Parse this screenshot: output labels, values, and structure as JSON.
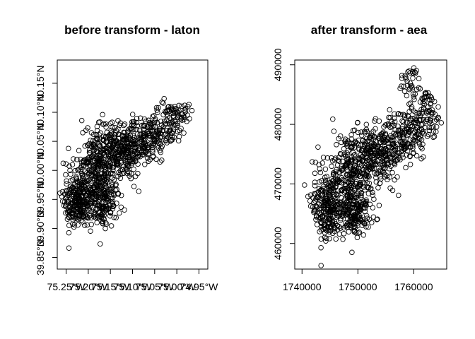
{
  "chart_data": [
    {
      "type": "scatter",
      "title": "before transform - laton",
      "xlabel": "",
      "ylabel": "",
      "marker": "open-circle",
      "color": "#000000",
      "xlim": [
        -75.27,
        -74.93
      ],
      "ylim": [
        39.83,
        40.19
      ],
      "x_ticks": [
        -75.25,
        -75.2,
        -75.15,
        -75.1,
        -75.05,
        -75.0,
        -74.95
      ],
      "x_tick_labels": [
        "75.25°W",
        "75.20°W",
        "75.15°W",
        "75.10°W",
        "75.05°W",
        "75.00°W",
        "74.95°W"
      ],
      "y_ticks": [
        39.85,
        39.9,
        39.95,
        40.0,
        40.05,
        40.1,
        40.15
      ],
      "y_tick_labels": [
        "39.85°N",
        "39.90°N",
        "39.95°N",
        "40.00°N",
        "40.05°N",
        "40.10°N",
        "40.15°N"
      ],
      "clusters": [
        {
          "center": [
            -75.225,
            39.955
          ],
          "spread": [
            0.018,
            0.02
          ],
          "count": 160
        },
        {
          "center": [
            -75.225,
            39.925
          ],
          "spread": [
            0.012,
            0.014
          ],
          "count": 60
        },
        {
          "center": [
            -75.18,
            39.965
          ],
          "spread": [
            0.02,
            0.03
          ],
          "count": 160
        },
        {
          "center": [
            -75.165,
            40.02
          ],
          "spread": [
            0.022,
            0.03
          ],
          "count": 220
        },
        {
          "center": [
            -75.165,
            39.935
          ],
          "spread": [
            0.016,
            0.016
          ],
          "count": 80
        },
        {
          "center": [
            -75.12,
            40.03
          ],
          "spread": [
            0.025,
            0.022
          ],
          "count": 190
        },
        {
          "center": [
            -75.07,
            40.055
          ],
          "spread": [
            0.025,
            0.02
          ],
          "count": 160
        },
        {
          "center": [
            -75.02,
            40.08
          ],
          "spread": [
            0.022,
            0.018
          ],
          "count": 90
        },
        {
          "center": [
            -74.99,
            40.1
          ],
          "spread": [
            0.015,
            0.01
          ],
          "count": 30
        },
        {
          "center": [
            -75.2,
            40.01
          ],
          "spread": [
            0.025,
            0.035
          ],
          "count": 70
        }
      ]
    },
    {
      "type": "scatter",
      "title": "after transform - aea",
      "xlabel": "",
      "ylabel": "",
      "marker": "open-circle",
      "color": "#000000",
      "xlim": [
        1738700,
        1765900
      ],
      "ylim": [
        455700,
        490800
      ],
      "x_ticks": [
        1740000,
        1750000,
        1760000
      ],
      "x_tick_labels": [
        "1740000",
        "1750000",
        "1760000"
      ],
      "y_ticks": [
        460000,
        470000,
        480000,
        490000
      ],
      "y_tick_labels": [
        "460000",
        "470000",
        "480000",
        "490000"
      ],
      "clusters": [
        {
          "center": [
            1744300,
            467200
          ],
          "spread": [
            1500,
            2300
          ],
          "count": 160
        },
        {
          "center": [
            1744800,
            463000
          ],
          "spread": [
            900,
            1600
          ],
          "count": 60
        },
        {
          "center": [
            1748600,
            466500
          ],
          "spread": [
            1700,
            2500
          ],
          "count": 150
        },
        {
          "center": [
            1750200,
            472700
          ],
          "spread": [
            2000,
            3000
          ],
          "count": 220
        },
        {
          "center": [
            1749600,
            464300
          ],
          "spread": [
            1300,
            1500
          ],
          "count": 80
        },
        {
          "center": [
            1754000,
            474700
          ],
          "spread": [
            2400,
            2200
          ],
          "count": 190
        },
        {
          "center": [
            1758400,
            478300
          ],
          "spread": [
            2300,
            2000
          ],
          "count": 160
        },
        {
          "center": [
            1762000,
            482000
          ],
          "spread": [
            1800,
            2000
          ],
          "count": 90
        },
        {
          "center": [
            1759300,
            487300
          ],
          "spread": [
            1000,
            1300
          ],
          "count": 30
        },
        {
          "center": [
            1746800,
            473500
          ],
          "spread": [
            2200,
            3400
          ],
          "count": 70
        }
      ]
    }
  ]
}
